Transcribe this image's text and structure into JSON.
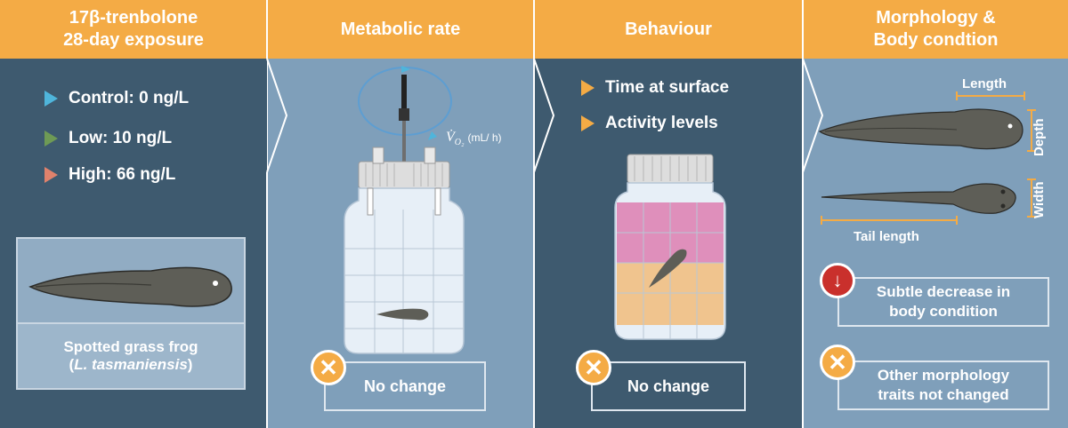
{
  "panels": {
    "exposure": {
      "title_line1": "17β-trenbolone",
      "title_line2": "28-day exposure",
      "treatments": [
        {
          "label": "Control: 0 ng/L",
          "color": "#4fb5db"
        },
        {
          "label": "Low: 10 ng/L",
          "color": "#6e9a55"
        },
        {
          "label": "High: 66 ng/L",
          "color": "#e0826c"
        }
      ],
      "species_name": "Spotted grass frog",
      "species_sci": "L. tasmaniensis"
    },
    "metabolic": {
      "title": "Metabolic rate",
      "vo2_symbol": "V̇",
      "vo2_sub": "O₂",
      "vo2_unit": "(mL/ h)",
      "result": "No change"
    },
    "behaviour": {
      "title": "Behaviour",
      "items": [
        "Time at surface",
        "Activity levels"
      ],
      "result": "No change"
    },
    "morphology": {
      "title_line1": "Morphology &",
      "title_line2": "Body condtion",
      "length_label": "Length",
      "depth_label": "Depth",
      "width_label": "Width",
      "tail_label": "Tail length",
      "result1": "Subtle decrease in body condition",
      "result2": "Other morphology traits not changed"
    }
  },
  "colors": {
    "orange": "#f4ab45",
    "dark_blue": "#3e5a6f",
    "light_blue": "#7f9fba",
    "alert_red": "#c9302c"
  }
}
